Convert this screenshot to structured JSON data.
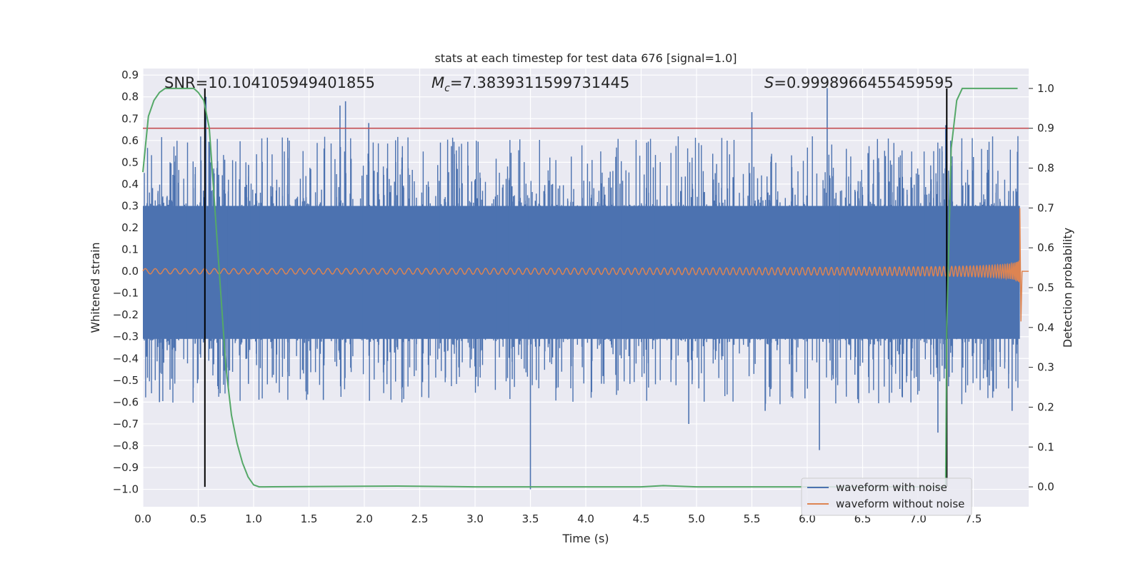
{
  "chart_data": {
    "type": "line",
    "title": "stats at each timestep for test data 676 [signal=1.0]",
    "xlabel": "Time (s)",
    "ylabel": "Whitened strain",
    "ylabel_right": "Detection probability",
    "xlim": [
      0.0,
      8.0
    ],
    "ylim": [
      -1.08,
      0.93
    ],
    "ylim_right": [
      -0.05,
      1.05
    ],
    "x_ticks": [
      "0.0",
      "0.5",
      "1.0",
      "1.5",
      "2.0",
      "2.5",
      "3.0",
      "3.5",
      "4.0",
      "4.5",
      "5.0",
      "5.5",
      "6.0",
      "6.5",
      "7.0",
      "7.5"
    ],
    "y_ticks": [
      "0.9",
      "0.8",
      "0.7",
      "0.6",
      "0.5",
      "0.4",
      "0.3",
      "0.2",
      "0.1",
      "0.0",
      "−0.1",
      "−0.2",
      "−0.3",
      "−0.4",
      "−0.5",
      "−0.6",
      "−0.7",
      "−0.8",
      "−0.9",
      "−1.0"
    ],
    "y_ticks_right": [
      "1.0",
      "0.9",
      "0.8",
      "0.7",
      "0.6",
      "0.5",
      "0.4",
      "0.3",
      "0.2",
      "0.1",
      "0.0"
    ],
    "grid": true,
    "legend_position": "lower-right",
    "annotations": {
      "snr": "SNR=10.104105949401855",
      "mc_symbol": "M",
      "mc_sub": "c",
      "mc_value": "=7.3839311599731445",
      "s_symbol": "S",
      "s_value": "=0.9998966455459595"
    },
    "series": [
      {
        "name": "waveform with noise",
        "color": "#4c72b0",
        "axis": "left",
        "band_lower": -0.31,
        "band_upper": 0.3,
        "peaks": [
          {
            "x": 0.57,
            "y": 0.8
          },
          {
            "x": 1.78,
            "y": 0.76
          },
          {
            "x": 1.83,
            "y": 0.78
          },
          {
            "x": 2.04,
            "y": 0.68
          },
          {
            "x": 5.5,
            "y": 0.73
          },
          {
            "x": 6.18,
            "y": 0.84
          },
          {
            "x": 7.25,
            "y": 0.67
          },
          {
            "x": 0.15,
            "y": -0.6
          },
          {
            "x": 1.63,
            "y": -0.59
          },
          {
            "x": 3.5,
            "y": -1.0
          },
          {
            "x": 4.93,
            "y": -0.7
          },
          {
            "x": 6.11,
            "y": -0.82
          },
          {
            "x": 7.18,
            "y": -0.74
          },
          {
            "x": 5.62,
            "y": -0.64
          },
          {
            "x": 7.85,
            "y": -0.64
          }
        ]
      },
      {
        "name": "waveform without noise",
        "color": "#dd8452",
        "axis": "left",
        "x_merger": 7.92,
        "peak_amplitude": 0.29,
        "min_amplitude": -0.23
      },
      {
        "name": "detection probability",
        "color": "#55a868",
        "axis": "right",
        "x": [
          0.0,
          0.05,
          0.1,
          0.15,
          0.2,
          0.3,
          0.4,
          0.46,
          0.5,
          0.55,
          0.6,
          0.65,
          0.7,
          0.75,
          0.8,
          0.85,
          0.9,
          0.95,
          1.0,
          1.05,
          1.1,
          2.3,
          3.0,
          4.5,
          4.7,
          5.0,
          7.0,
          7.25,
          7.26,
          7.3,
          7.35,
          7.4,
          7.9
        ],
        "values": [
          0.79,
          0.93,
          0.97,
          0.99,
          1.0,
          1.0,
          1.0,
          1.0,
          0.99,
          0.97,
          0.9,
          0.7,
          0.5,
          0.3,
          0.18,
          0.11,
          0.06,
          0.025,
          0.005,
          0.0,
          0.0,
          0.002,
          0.0,
          0.0,
          0.003,
          0.0,
          0.0,
          0.0,
          0.4,
          0.85,
          0.97,
          1.0,
          1.0
        ]
      }
    ],
    "threshold": {
      "axis": "right",
      "y": 0.9,
      "color": "#c44e52"
    },
    "vertical_markers": [
      {
        "x": 0.56,
        "color": "#000000"
      },
      {
        "x": 7.26,
        "color": "#000000"
      }
    ]
  }
}
